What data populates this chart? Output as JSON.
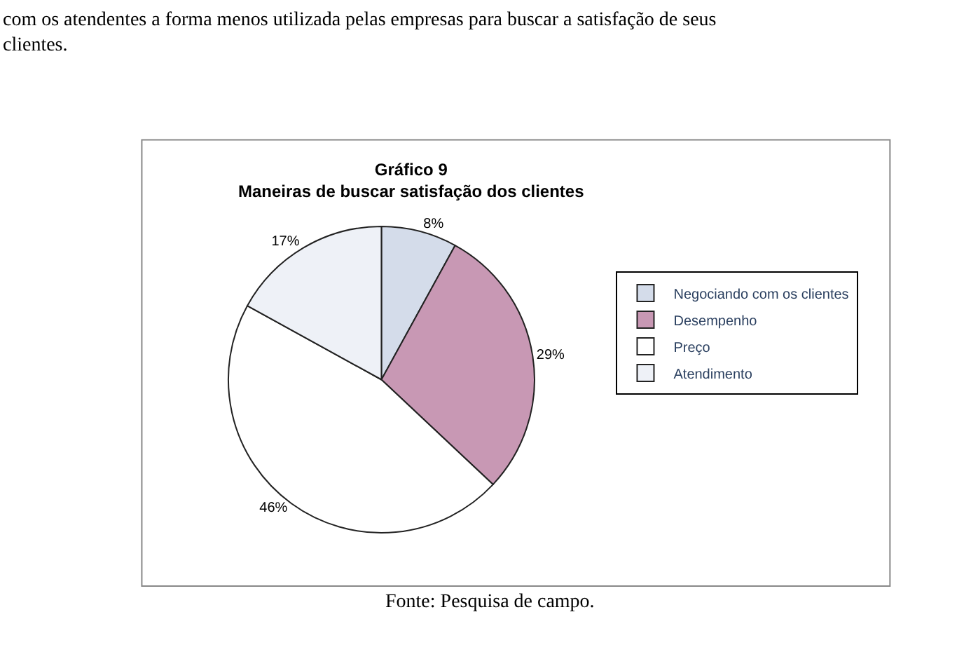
{
  "chart_data": {
    "type": "pie",
    "title": "Gráfico 9\nManeiras de buscar satisfação dos clientes",
    "categories": [
      "Negociando com os clientes",
      "Desempenho",
      "Preço",
      "Atendimento"
    ],
    "values": [
      8,
      29,
      46,
      17
    ],
    "value_labels": [
      "8%",
      "29%",
      "46%",
      "17%"
    ],
    "colors": [
      "#d4dcea",
      "#c898b4",
      "#ffffff",
      "#eef1f7"
    ],
    "legend": "right",
    "annotations": [
      "com os atendentes a forma menos utilizada pelas empresas para buscar a satisfação de seus\nclientes.",
      "Fonte: Pesquisa de campo."
    ]
  }
}
